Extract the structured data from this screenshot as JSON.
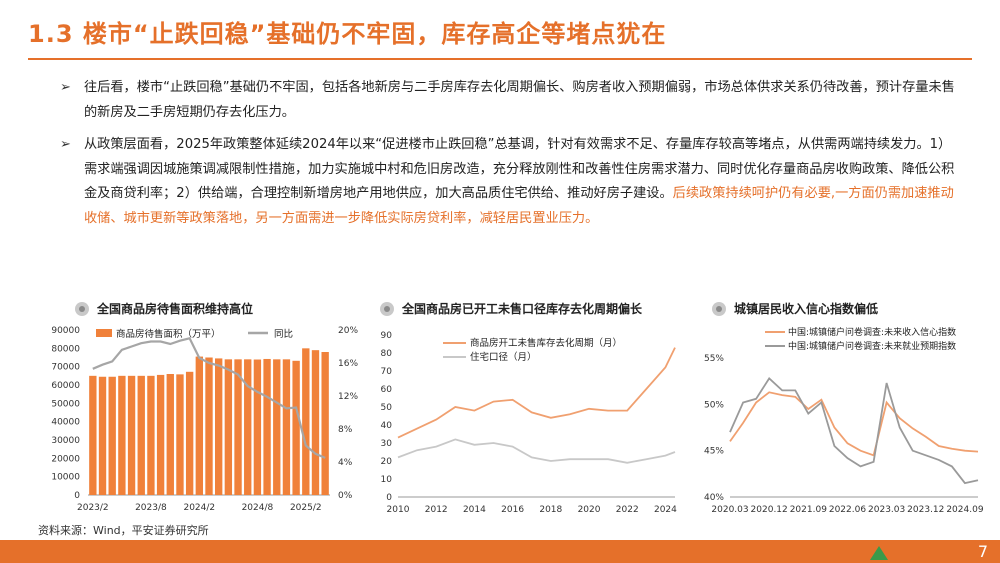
{
  "header": {
    "title": "1.3 楼市“止跌回稳”基础仍不牢固，库存高企等堵点犹在"
  },
  "bullets": [
    {
      "text": "往后看，楼市“止跌回稳”基础仍不牢固，包括各地新房与二手房库存去化周期偏长、购房者收入预期偏弱，市场总体供求关系仍待改善，预计存量未售的新房及二手房短期仍存去化压力。",
      "highlight": ""
    },
    {
      "text": "从政策层面看，2025年政策整体延续2024年以来“促进楼市止跌回稳”总基调，针对有效需求不足、存量库存较高等堵点，从供需两端持续发力。1）需求端强调因城施策调减限制性措施，加力实施城中村和危旧房改造，充分释放刚性和改善性住房需求潜力、同时优化存量商品房收购政策、降低公积金及商贷利率；2）供给端，合理控制新增房地产用地供应，加大高品质住宅供给、推动好房子建设。",
      "highlight": "后续政策持续呵护仍有必要,一方面仍需加速推动收储、城市更新等政策落地，另一方面需进一步降低实际房贷利率，减轻居民置业压力。"
    }
  ],
  "source": "资料来源：Wind，平安证券研究所",
  "page_number": "7",
  "colors": {
    "accent": "#e5702a",
    "bar": "#f0813a",
    "gray": "#a6a6a6",
    "orange_line": "#f0a070"
  },
  "chart_data": [
    {
      "type": "bar",
      "title": "全国商品房待售面积维持高位",
      "categories": [
        "2023/2",
        "2023/3",
        "2023/4",
        "2023/5",
        "2023/6",
        "2023/7",
        "2023/8",
        "2023/9",
        "2023/10",
        "2023/11",
        "2023/12",
        "2024/2",
        "2024/3",
        "2024/4",
        "2024/5",
        "2024/6",
        "2024/7",
        "2024/8",
        "2024/9",
        "2024/10",
        "2024/11",
        "2024/12",
        "2025/2",
        "2025/3",
        "2025/4"
      ],
      "tick_labels": [
        "2023/2",
        "2023/8",
        "2024/2",
        "2024/8",
        "2025/2"
      ],
      "series": [
        {
          "name": "商品房待售面积（万平）",
          "kind": "bar",
          "axis": "left",
          "values": [
            65000,
            64500,
            64500,
            65000,
            65000,
            65000,
            65000,
            65500,
            66000,
            65800,
            67200,
            75500,
            75000,
            74500,
            74000,
            74000,
            74000,
            73900,
            74200,
            74000,
            74000,
            73200,
            80000,
            79000,
            78000
          ]
        },
        {
          "name": "同比",
          "kind": "line",
          "axis": "right",
          "values": [
            15.3,
            15.8,
            16.2,
            17.6,
            18.0,
            18.4,
            18.6,
            18.6,
            18.3,
            18.7,
            19.0,
            16.6,
            16.0,
            15.7,
            15.2,
            14.6,
            13.2,
            12.5,
            11.9,
            11.2,
            10.5,
            10.6,
            6.0,
            5.0,
            4.5
          ]
        }
      ],
      "ylim": [
        0,
        90000
      ],
      "yticks": [
        0,
        10000,
        20000,
        30000,
        40000,
        50000,
        60000,
        70000,
        80000,
        90000
      ],
      "y2lim": [
        0,
        20
      ],
      "y2ticks": [
        "0%",
        "4%",
        "8%",
        "12%",
        "16%",
        "20%"
      ],
      "legend": "top-left"
    },
    {
      "type": "line",
      "title": "全国商品房已开工未售口径库存去化周期偏长",
      "x": [
        2010,
        2011,
        2012,
        2013,
        2014,
        2015,
        2016,
        2017,
        2018,
        2019,
        2020,
        2021,
        2022,
        2023,
        2024,
        2024.5
      ],
      "tick_labels": [
        "2010",
        "2012",
        "2014",
        "2016",
        "2018",
        "2020",
        "2022",
        "2024"
      ],
      "series": [
        {
          "name": "商品房开工未售库存去化周期（月）",
          "values": [
            33,
            38,
            43,
            50,
            48,
            53,
            54,
            47,
            44,
            46,
            49,
            48,
            48,
            60,
            72,
            83
          ]
        },
        {
          "name": "住宅口径（月）",
          "values": [
            22,
            26,
            28,
            32,
            29,
            30,
            28,
            22,
            20,
            21,
            21,
            21,
            19,
            21,
            23,
            25
          ]
        }
      ],
      "ylim": [
        0,
        90
      ],
      "yticks": [
        0,
        10,
        20,
        30,
        40,
        50,
        60,
        70,
        80,
        90
      ],
      "legend": "top-left"
    },
    {
      "type": "line",
      "title": "城镇居民收入信心指数偏低",
      "x": [
        "2020.03",
        "2020.06",
        "2020.09",
        "2020.12",
        "2021.03",
        "2021.06",
        "2021.09",
        "2021.12",
        "2022.03",
        "2022.06",
        "2022.09",
        "2022.12",
        "2023.03",
        "2023.06",
        "2023.09",
        "2023.12",
        "2024.03",
        "2024.06",
        "2024.09",
        "2024.12"
      ],
      "tick_labels": [
        "2020.03",
        "2020.12",
        "2021.09",
        "2022.06",
        "2023.03",
        "2023.12",
        "2024.09"
      ],
      "series": [
        {
          "name": "中国:城镇储户问卷调查:未来收入信心指数",
          "values": [
            46.0,
            48.0,
            50.2,
            51.3,
            51.0,
            50.8,
            49.5,
            50.5,
            47.5,
            45.8,
            45.0,
            44.5,
            50.2,
            48.5,
            47.4,
            46.5,
            45.5,
            45.2,
            45.0,
            44.9
          ]
        },
        {
          "name": "中国:城镇储户问卷调查:未来就业预期指数",
          "values": [
            47.0,
            50.2,
            50.6,
            52.8,
            51.5,
            51.5,
            49.0,
            50.2,
            45.5,
            44.2,
            43.3,
            43.8,
            52.3,
            47.5,
            45.0,
            44.5,
            44.0,
            43.3,
            41.5,
            41.8
          ]
        }
      ],
      "ylim": [
        40,
        55
      ],
      "yticks": [
        "40%",
        "45%",
        "50%",
        "55%"
      ],
      "legend": "top-left"
    }
  ]
}
